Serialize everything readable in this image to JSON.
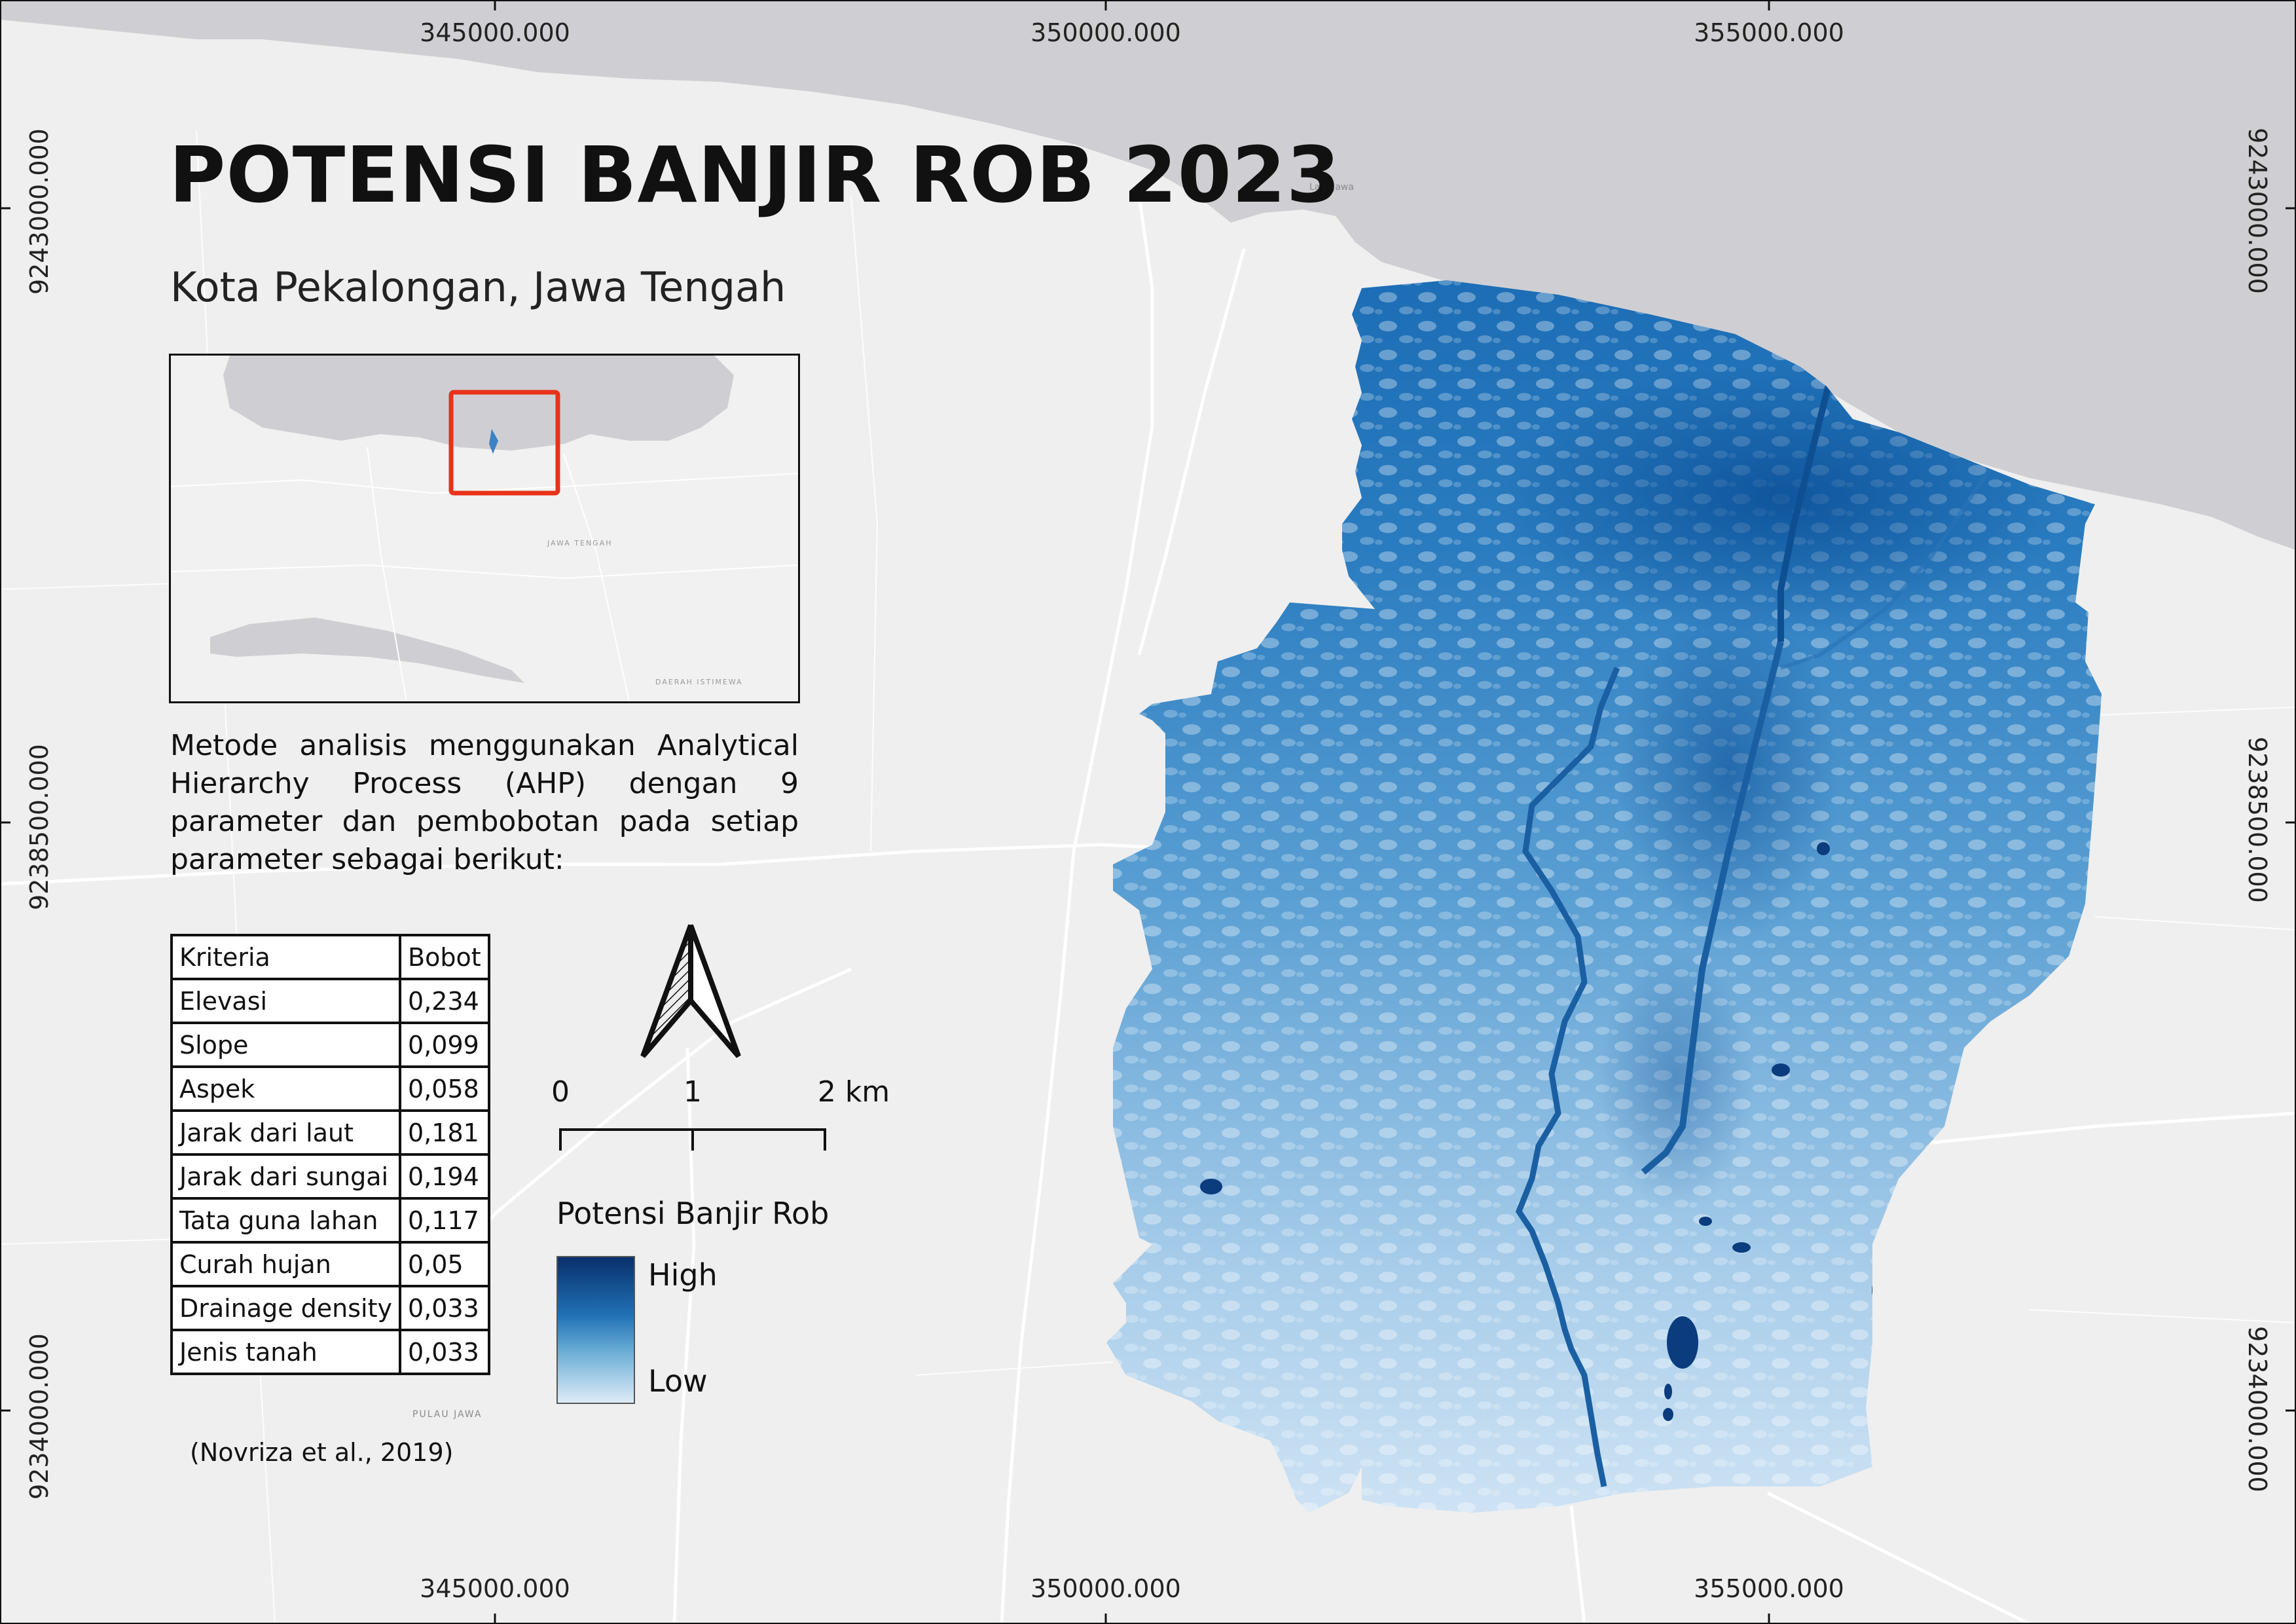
{
  "title": "POTENSI BANJIR ROB 2023",
  "subtitle": "Kota Pekalongan, Jawa Tengah",
  "grid": {
    "x_labels": [
      "345000.000",
      "350000.000",
      "355000.000"
    ],
    "y_labels": [
      "9243000.000",
      "9238500.000",
      "9234000.000"
    ]
  },
  "basemap_labels": {
    "sea": "Laut Jawa",
    "island": "PULAU JAWA",
    "inset_province": "JAWA TENGAH",
    "inset_region": "DAERAH ISTIMEWA"
  },
  "method_text": "Metode analisis menggunakan Analytical Hierarchy Process (AHP) dengan 9 parameter dan pembobotan pada setiap parameter sebagai berikut:",
  "criteria_table": {
    "headers": [
      "Kriteria",
      "Bobot"
    ],
    "rows": [
      [
        "Elevasi",
        "0,234"
      ],
      [
        "Slope",
        "0,099"
      ],
      [
        "Aspek",
        "0,058"
      ],
      [
        "Jarak dari laut",
        "0,181"
      ],
      [
        "Jarak dari sungai",
        "0,194"
      ],
      [
        "Tata guna lahan",
        "0,117"
      ],
      [
        "Curah hujan",
        "0,05"
      ],
      [
        "Drainage density",
        "0,033"
      ],
      [
        "Jenis tanah",
        "0,033"
      ]
    ]
  },
  "citation": "(Novriza et al., 2019)",
  "scale_bar": {
    "labels": [
      "0",
      "1",
      "2 km"
    ]
  },
  "legend": {
    "title": "Potensi Banjir Rob",
    "high": "High",
    "low": "Low",
    "colors": {
      "high": "#08306b",
      "mid": "#2171b5",
      "low": "#deebf7"
    }
  },
  "colors": {
    "sea": "#cfcfd3",
    "land": "#efefef",
    "road": "#ffffff",
    "inset_marker": "#e8321a"
  },
  "icons": [
    "north-arrow-icon"
  ]
}
